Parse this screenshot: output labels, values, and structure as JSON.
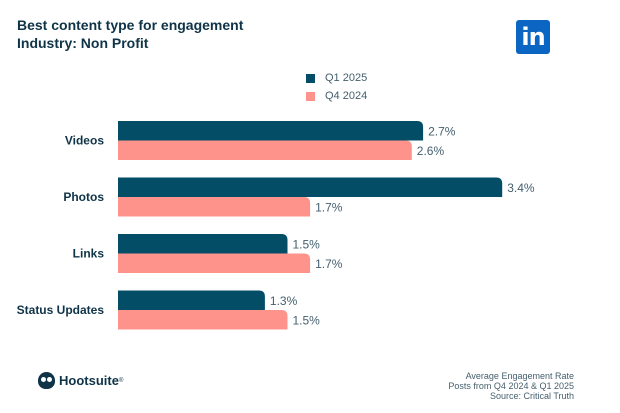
{
  "header": {
    "title": "Best content type for engagement",
    "subtitle": "Industry: Non Profit",
    "logo": "in"
  },
  "legend": [
    {
      "label": "Q1 2025",
      "color": "#034d66"
    },
    {
      "label": "Q4 2024",
      "color": "#fe938c"
    }
  ],
  "footer": {
    "brand": "Hootsuite",
    "reg": "®",
    "notes": [
      "Average Engagement Rate",
      "Posts from Q4 2024 & Q1 2025",
      "Source: Critical Truth"
    ]
  },
  "chart_data": {
    "type": "bar",
    "orientation": "horizontal",
    "title": "Best content type for engagement",
    "subtitle": "Industry: Non Profit",
    "categories": [
      "Videos",
      "Photos",
      "Links",
      "Status Updates"
    ],
    "series": [
      {
        "name": "Q1 2025",
        "color": "#034d66",
        "values": [
          2.7,
          3.4,
          1.5,
          1.3
        ],
        "labels": [
          "2.7%",
          "3.4%",
          "1.5%",
          "1.3%"
        ]
      },
      {
        "name": "Q4 2024",
        "color": "#fe938c",
        "values": [
          2.6,
          1.7,
          1.7,
          1.5
        ],
        "labels": [
          "2.6%",
          "1.7%",
          "1.7%",
          "1.5%"
        ]
      }
    ],
    "xlabel": "",
    "ylabel": "",
    "xlim": [
      0,
      3.4
    ],
    "grid": false,
    "legend_position": "top-center",
    "unit": "%"
  }
}
